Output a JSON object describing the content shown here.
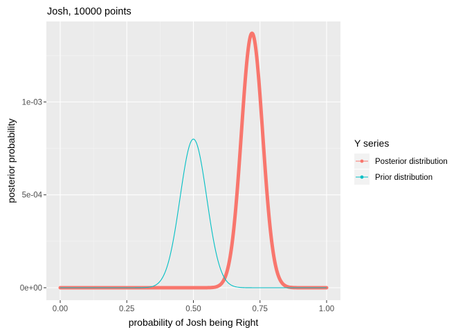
{
  "chart_data": {
    "type": "line",
    "title": "Josh, 10000 points",
    "xlabel": "probability of Josh being Right",
    "ylabel": "posterior probability",
    "xlim": [
      0,
      1
    ],
    "ylim": [
      0,
      0.00137
    ],
    "x_ticks": [
      {
        "value": 0.0,
        "label": "0.00"
      },
      {
        "value": 0.25,
        "label": "0.25"
      },
      {
        "value": 0.5,
        "label": "0.50"
      },
      {
        "value": 0.75,
        "label": "0.75"
      },
      {
        "value": 1.0,
        "label": "1.00"
      }
    ],
    "y_ticks": [
      {
        "value": 0,
        "label": "0e+00"
      },
      {
        "value": 0.0005,
        "label": "5e-04"
      },
      {
        "value": 0.001,
        "label": "1e-03"
      }
    ],
    "grid": true,
    "legend": {
      "title": "Y series",
      "position": "right"
    },
    "series": [
      {
        "name": "Posterior distribution",
        "color": "#F8766D",
        "peak_x": 0.72,
        "peak_y": 0.00137,
        "sd": 0.04,
        "x": [
          0.0,
          0.55,
          0.6,
          0.64,
          0.66,
          0.68,
          0.7,
          0.72,
          0.74,
          0.76,
          0.78,
          0.8,
          0.84,
          0.9,
          1.0
        ],
        "y": [
          0,
          2e-05,
          1.4e-05,
          0.00019,
          0.00044,
          0.00083,
          0.00121,
          0.00137,
          0.00121,
          0.00083,
          0.00044,
          0.00019,
          1.4e-05,
          0,
          0
        ]
      },
      {
        "name": "Prior distribution",
        "color": "#00BFC4",
        "peak_x": 0.5,
        "peak_y": 0.0008,
        "sd": 0.05,
        "x": [
          0.0,
          0.3,
          0.35,
          0.4,
          0.45,
          0.5,
          0.55,
          0.6,
          0.65,
          0.7,
          1.0
        ],
        "y": [
          0,
          3e-06,
          8.9e-05,
          0.00011,
          0.00049,
          0.0008,
          0.00049,
          0.00011,
          8.9e-05,
          3e-06,
          0
        ]
      }
    ]
  }
}
